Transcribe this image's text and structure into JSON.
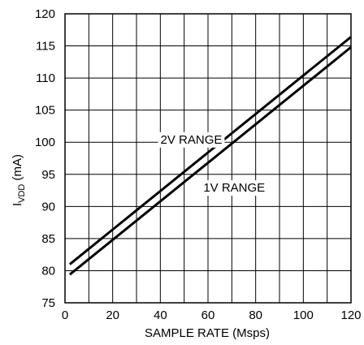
{
  "chart_data": {
    "type": "line",
    "title": "",
    "xlabel": "SAMPLE RATE (Msps)",
    "ylabel_main": "I",
    "ylabel_sub": "VDD",
    "ylabel_unit": " (mA)",
    "xlim": [
      0,
      120
    ],
    "ylim": [
      75,
      120
    ],
    "x_ticks": [
      "0",
      "20",
      "40",
      "60",
      "80",
      "100",
      "120"
    ],
    "y_ticks": [
      "75",
      "80",
      "85",
      "90",
      "95",
      "100",
      "105",
      "110",
      "115",
      "120"
    ],
    "grid": true,
    "series": [
      {
        "name": "2V RANGE",
        "x": [
          2,
          120
        ],
        "y": [
          81,
          116.4
        ]
      },
      {
        "name": "1V RANGE",
        "x": [
          2,
          120
        ],
        "y": [
          79.4,
          114.8
        ]
      }
    ],
    "annotations": [
      {
        "text": "2V RANGE",
        "x": 53,
        "y": 99.8
      },
      {
        "text": "1V RANGE",
        "x": 71,
        "y": 92.3
      }
    ],
    "colors": {
      "line": "#000000",
      "grid": "#000000",
      "background": "#ffffff"
    }
  }
}
